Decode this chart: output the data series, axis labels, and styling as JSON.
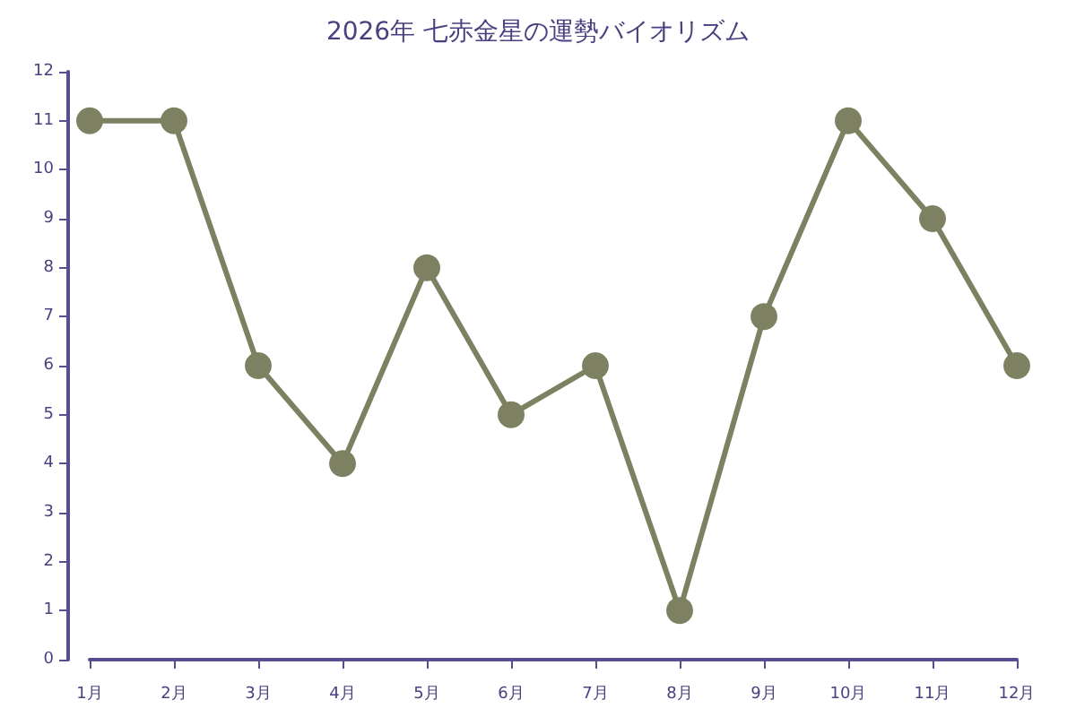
{
  "chart_data": {
    "type": "line",
    "title": "2026年 七赤金星の運勢バイオリズム",
    "categories": [
      "1月",
      "2月",
      "3月",
      "4月",
      "5月",
      "6月",
      "7月",
      "8月",
      "9月",
      "10月",
      "11月",
      "12月"
    ],
    "series": [
      {
        "color": "#7d8061",
        "values": [
          11,
          11,
          6,
          4,
          8,
          5,
          6,
          1,
          7,
          11,
          9,
          6
        ]
      }
    ],
    "ylim": [
      0,
      12
    ],
    "yticks": [
      0,
      1,
      2,
      3,
      4,
      5,
      6,
      7,
      8,
      9,
      10,
      11,
      12
    ],
    "grid": false,
    "marker": "circle",
    "line_style": "solid"
  }
}
